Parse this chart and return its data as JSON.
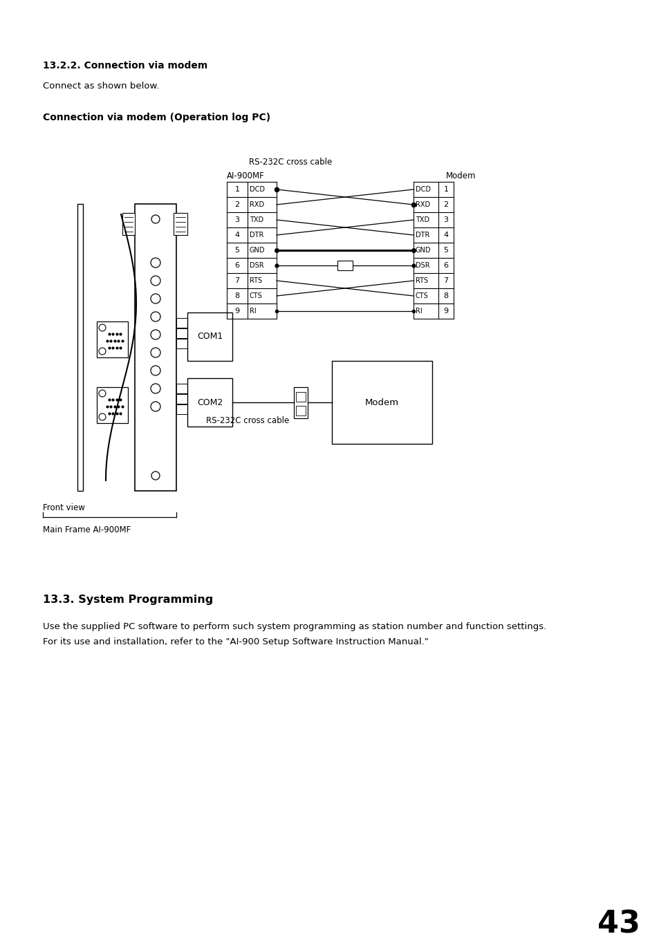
{
  "title_section": "13.2.2. Connection via modem",
  "connect_text": "Connect as shown below.",
  "diagram_title": "Connection via modem (Operation log PC)",
  "cable_label_top": "RS-232C cross cable",
  "ai900mf_label": "AI-900MF",
  "modem_label_top": "Modem",
  "pins": [
    "1",
    "2",
    "3",
    "4",
    "5",
    "6",
    "7",
    "8",
    "9"
  ],
  "pin_labels_left": [
    "DCD",
    "RXD",
    "TXD",
    "DTR",
    "GND",
    "DSR",
    "RTS",
    "CTS",
    "RI"
  ],
  "pin_labels_right": [
    "DCD",
    "RXD",
    "TXD",
    "DTR",
    "GND",
    "DSR",
    "RTS",
    "CTS",
    "RI"
  ],
  "com1_label": "COM1",
  "com2_label": "COM2",
  "cable_label_bottom": "RS-232C cross cable",
  "modem_label_bottom": "Modem",
  "front_view_label": "Front view",
  "main_frame_label": "Main Frame AI-900MF",
  "section_title": "13.3. System Programming",
  "body_text_1": "Use the supplied PC software to perform such system programming as station number and function settings.",
  "body_text_2": "For its use and installation, refer to the \"AI-900 Setup Software Instruction Manual.\"",
  "page_number": "43",
  "bg_color": "#ffffff",
  "text_color": "#000000"
}
